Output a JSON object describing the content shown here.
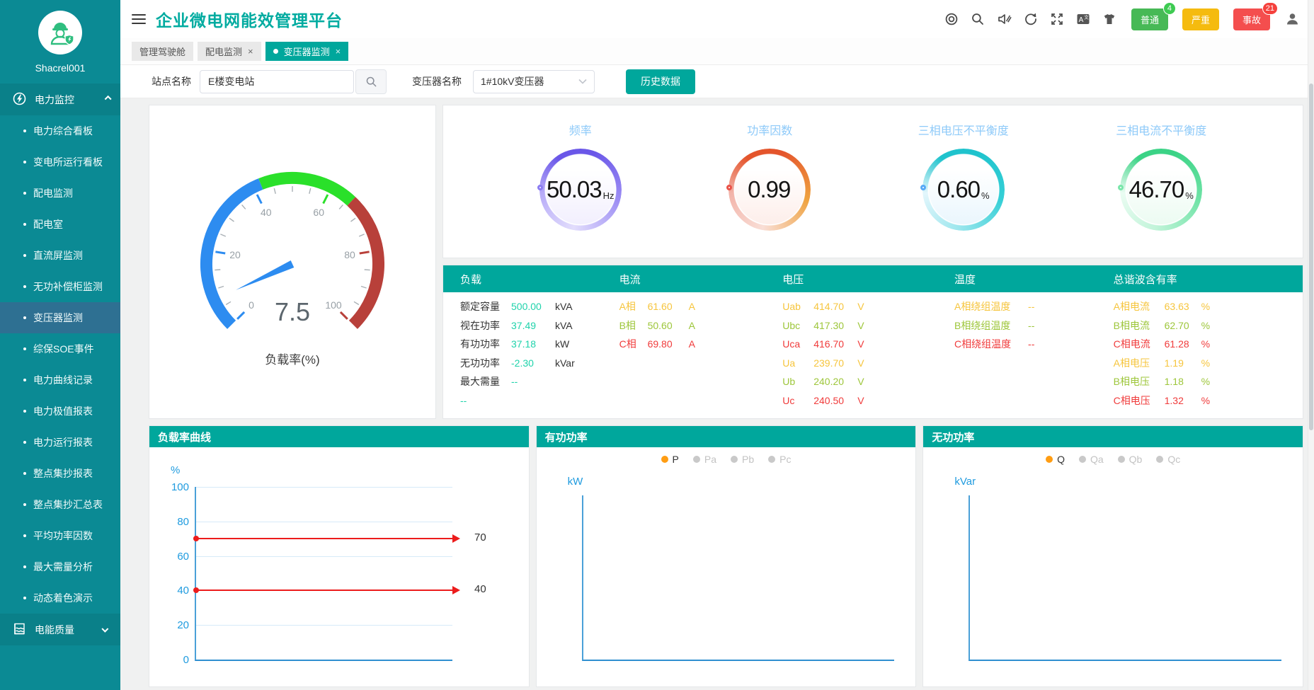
{
  "app": {
    "title": "企业微电网能效管理平台",
    "username": "Shacrel001"
  },
  "header": {
    "icons": [
      "target",
      "search",
      "sound-muted",
      "refresh",
      "fullscreen",
      "translate",
      "theme",
      "user"
    ],
    "alarms": [
      {
        "label": "普通",
        "count": "4",
        "color": "#47b956",
        "badge_color": "#3ecb52"
      },
      {
        "label": "严重",
        "count": "",
        "color": "#f5bb0f",
        "badge_color": ""
      },
      {
        "label": "事故",
        "count": "21",
        "color": "#f44e4e",
        "badge_color": "#f5413d"
      }
    ]
  },
  "tabs": [
    {
      "label": "管理驾驶舱",
      "active": false,
      "closable": false
    },
    {
      "label": "配电监测",
      "active": false,
      "closable": true
    },
    {
      "label": "变压器监测",
      "active": true,
      "closable": true
    }
  ],
  "filters": {
    "site_label": "站点名称",
    "site_value": "E楼变电站",
    "transformer_label": "变压器名称",
    "transformer_value": "1#10kV变压器",
    "history_button": "历史数据"
  },
  "sidebar": {
    "groups": [
      {
        "label": "电力监控",
        "icon": "power",
        "expanded": true,
        "items": [
          {
            "label": "电力综合看板"
          },
          {
            "label": "变电所运行看板"
          },
          {
            "label": "配电监测"
          },
          {
            "label": "配电室"
          },
          {
            "label": "直流屏监测"
          },
          {
            "label": "无功补偿柜监测"
          },
          {
            "label": "变压器监测",
            "active": true
          },
          {
            "label": "综保SOE事件"
          },
          {
            "label": "电力曲线记录"
          },
          {
            "label": "电力极值报表"
          },
          {
            "label": "电力运行报表"
          },
          {
            "label": "整点集抄报表"
          },
          {
            "label": "整点集抄汇总表"
          },
          {
            "label": "平均功率因数"
          },
          {
            "label": "最大需量分析"
          },
          {
            "label": "动态着色演示"
          }
        ]
      },
      {
        "label": "电能质量",
        "icon": "quality",
        "expanded": false,
        "items": []
      }
    ]
  },
  "kpis": [
    {
      "label": "频率",
      "value": "50.03",
      "unit": "Hz",
      "theme": {
        "ring": [
          "#6a57e8",
          "#9c8df4",
          "#e2ddfc",
          "#b7abf8"
        ],
        "dot": "#8b7cf2",
        "fill": "#f2effe"
      }
    },
    {
      "label": "功率因数",
      "value": "0.99",
      "unit": "",
      "theme": {
        "ring": [
          "#e4552c",
          "#efa23f",
          "#f9ded6",
          "#f2b3a9"
        ],
        "dot": "#ea5248",
        "fill": "#fdeeea"
      }
    },
    {
      "label": "三相电压不平衡度",
      "value": "0.60",
      "unit": "%",
      "theme": {
        "ring": [
          "#1fc3cd",
          "#35cfd6",
          "#9fe7ee",
          "#e3f6fc"
        ],
        "dot": "#58aaf6",
        "fill": "#eaf6fd"
      }
    },
    {
      "label": "三相电流不平衡度",
      "value": "46.70",
      "unit": "%",
      "theme": {
        "ring": [
          "#3bd386",
          "#6fe3a6",
          "#c3f4da",
          "#eafcf2"
        ],
        "dot": "#79e6aa",
        "fill": "#ecfbf2"
      }
    }
  ],
  "table": {
    "headers": [
      "负载",
      "电流",
      "电压",
      "温度",
      "总谐波含有率"
    ],
    "columns": [
      {
        "mode": "load",
        "rows": [
          {
            "label": "额定容量",
            "value": "500.00",
            "unit": "kVA"
          },
          {
            "label": "视在功率",
            "value": "37.49",
            "unit": "kVA"
          },
          {
            "label": "有功功率",
            "value": "37.18",
            "unit": "kW"
          },
          {
            "label": "无功功率",
            "value": "-2.30",
            "unit": "kVar"
          },
          {
            "label": "最大需量",
            "value": "--",
            "unit": ""
          },
          {
            "label": "--",
            "value": "",
            "unit": ""
          }
        ]
      },
      {
        "mode": "phase",
        "rows": [
          {
            "label": "A相",
            "value": "61.60",
            "unit": "A"
          },
          {
            "label": "B相",
            "value": "50.60",
            "unit": "A"
          },
          {
            "label": "C相",
            "value": "69.80",
            "unit": "A"
          }
        ]
      },
      {
        "mode": "phase",
        "rows": [
          {
            "label": "Uab",
            "value": "414.70",
            "unit": "V"
          },
          {
            "label": "Ubc",
            "value": "417.30",
            "unit": "V"
          },
          {
            "label": "Uca",
            "value": "416.70",
            "unit": "V"
          },
          {
            "label": "Ua",
            "value": "239.70",
            "unit": "V"
          },
          {
            "label": "Ub",
            "value": "240.20",
            "unit": "V"
          },
          {
            "label": "Uc",
            "value": "240.50",
            "unit": "V"
          }
        ]
      },
      {
        "mode": "phase",
        "rows": [
          {
            "label": "A相绕组温度",
            "value": "--",
            "unit": ""
          },
          {
            "label": "B相绕组温度",
            "value": "--",
            "unit": ""
          },
          {
            "label": "C相绕组温度",
            "value": "--",
            "unit": ""
          }
        ]
      },
      {
        "mode": "phase",
        "rows": [
          {
            "label": "A相电流",
            "value": "63.63",
            "unit": "%"
          },
          {
            "label": "B相电流",
            "value": "62.70",
            "unit": "%"
          },
          {
            "label": "C相电流",
            "value": "61.28",
            "unit": "%"
          },
          {
            "label": "A相电压",
            "value": "1.19",
            "unit": "%"
          },
          {
            "label": "B相电压",
            "value": "1.18",
            "unit": "%"
          },
          {
            "label": "C相电压",
            "value": "1.32",
            "unit": "%"
          }
        ]
      }
    ]
  },
  "chart_data": [
    {
      "id": "load-rate-gauge",
      "type": "gauge",
      "title": "负载率(%)",
      "value": 7.5,
      "min": 0,
      "max": 100,
      "major_tick": 20,
      "minor_tick": 5,
      "segments": [
        {
          "to": 42,
          "color": "#2d8cf0"
        },
        {
          "to": 66,
          "color": "#2ae02a"
        },
        {
          "to": 100,
          "color": "#b8403a"
        }
      ],
      "pointer_color": "#2d8cf0"
    },
    {
      "id": "load-rate-curve",
      "type": "line",
      "title": "负载率曲线",
      "ylabel": "%",
      "ylim": [
        0,
        100
      ],
      "yticks": [
        0,
        20,
        40,
        60,
        80,
        100
      ],
      "grid": true,
      "series": [],
      "marklines": [
        {
          "value": 70,
          "label": "70"
        },
        {
          "value": 40,
          "label": "40"
        }
      ]
    },
    {
      "id": "active-power",
      "type": "line",
      "title": "有功功率",
      "ylabel": "kW",
      "legend": [
        {
          "name": "P",
          "selected": true
        },
        {
          "name": "Pa",
          "selected": false
        },
        {
          "name": "Pb",
          "selected": false
        },
        {
          "name": "Pc",
          "selected": false
        }
      ],
      "legend_position": "top-center",
      "series": [],
      "marklines": []
    },
    {
      "id": "reactive-power",
      "type": "line",
      "title": "无功功率",
      "ylabel": "kVar",
      "legend": [
        {
          "name": "Q",
          "selected": true
        },
        {
          "name": "Qa",
          "selected": false
        },
        {
          "name": "Qb",
          "selected": false
        },
        {
          "name": "Qc",
          "selected": false
        }
      ],
      "legend_position": "top-center",
      "series": [],
      "marklines": []
    }
  ],
  "colors": {
    "brand_teal": "#00a79c",
    "sidebar": "#0b8a94",
    "sidebar_active": "#2e7092",
    "value_teal": "#1fd3ab",
    "value_yellow": "#f6c53d",
    "value_green": "#9dc63a",
    "value_red": "#f03b3b",
    "axis_blue": "#2f8fd0",
    "tick_blue": "#1f9bdf",
    "markline_red": "#ec1c1c",
    "legend_on": "#ff9d13"
  }
}
